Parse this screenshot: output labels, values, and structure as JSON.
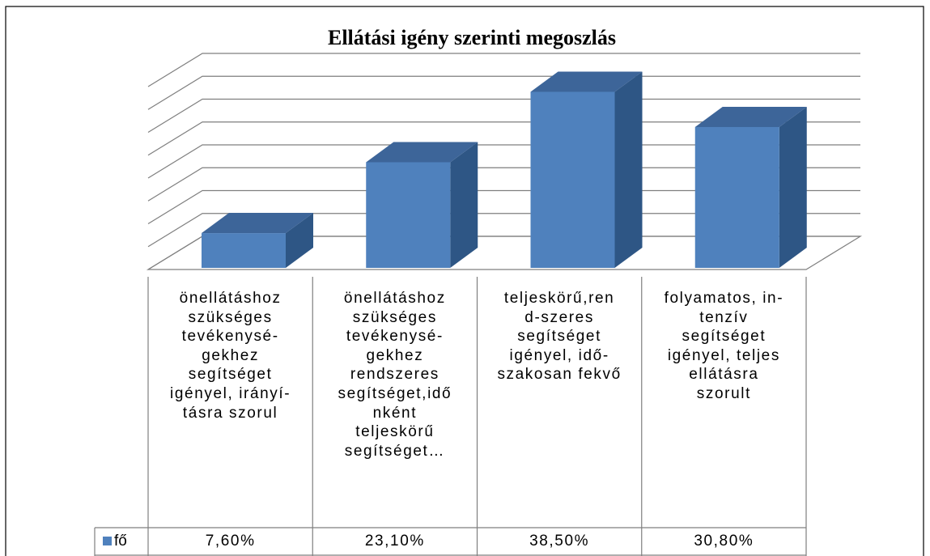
{
  "chart_data": {
    "type": "bar3d",
    "title": "Ellátási igény szerinti megoszlás",
    "categories": [
      "önellátáshoz\nszükséges\ntevékenysé-\ngekhez\nsegítséget\nigényel, irányí-\ntásra szorul",
      "önellátáshoz\nszükséges\ntevékenysé-\ngekhez\nrendszeres\nsegítséget,idő\nnként\nteljeskörű\nsegítséget…",
      "teljeskörű,ren\nd-szeres\nsegítséget\nigényel, idő-\nszakosan fekvő",
      "folyamatos, in-\ntenzív\nsegítséget\nigényel, teljes\nellátásra\nszorult"
    ],
    "series": [
      {
        "name": "fő",
        "color": "#4f81bd",
        "values": [
          7.6,
          23.1,
          38.5,
          30.8
        ],
        "value_labels": [
          "7,60%",
          "23,10%",
          "38,50%",
          "30,80%"
        ]
      }
    ],
    "ylim": [
      0,
      40
    ],
    "yticks": [
      0,
      5,
      10,
      15,
      20,
      25,
      30,
      35,
      40
    ],
    "grid": true,
    "legend": "bottom-left"
  }
}
